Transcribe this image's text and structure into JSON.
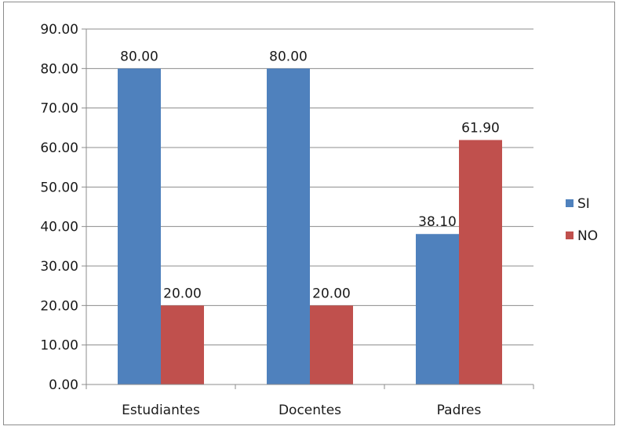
{
  "chart_data": {
    "type": "bar",
    "title": "",
    "xlabel": "",
    "ylabel": "",
    "categories": [
      "Estudiantes",
      "Docentes",
      "Padres"
    ],
    "series": [
      {
        "name": "SI",
        "color": "#4f81bd",
        "values": [
          80.0,
          80.0,
          38.1
        ],
        "labels": [
          "80.00",
          "80.00",
          "38.10"
        ]
      },
      {
        "name": "NO",
        "color": "#c0504d",
        "values": [
          20.0,
          20.0,
          61.9
        ],
        "labels": [
          "20.00",
          "20.00",
          "61.90"
        ]
      }
    ],
    "ylim": [
      0,
      90
    ],
    "ytick_labels": [
      "0.00",
      "10.00",
      "20.00",
      "30.00",
      "40.00",
      "50.00",
      "60.00",
      "70.00",
      "80.00",
      "90.00"
    ],
    "grid": true,
    "legend": "right"
  }
}
